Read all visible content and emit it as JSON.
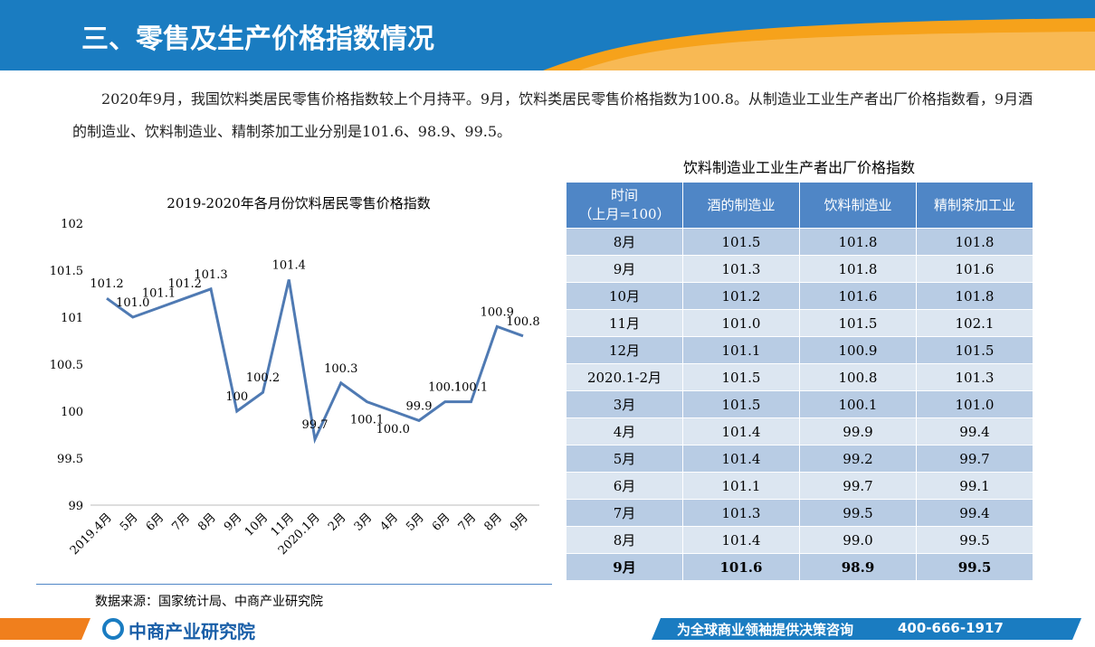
{
  "header": {
    "title": "三、零售及生产价格指数情况"
  },
  "paragraph": "2020年9月，我国饮料类居民零售价格指数较上个月持平。9月，饮料类居民零售价格指数为100.8。从制造业工业生产者出厂价格指数看，9月酒的制造业、饮料制造业、精制茶加工业分别是101.6、98.9、99.5。",
  "chart_data": {
    "type": "line",
    "title": "2019-2020年各月份饮料居民零售价格指数",
    "categories": [
      "2019.4月",
      "5月",
      "6月",
      "7月",
      "8月",
      "9月",
      "10月",
      "11月",
      "2020.1月",
      "2月",
      "3月",
      "4月",
      "5月",
      "6月",
      "7月",
      "8月",
      "9月"
    ],
    "values": [
      101.2,
      101.0,
      101.1,
      101.2,
      101.3,
      100,
      100.2,
      101.4,
      99.7,
      100.3,
      100.1,
      100.0,
      99.9,
      100.1,
      100.1,
      100.9,
      100.8
    ],
    "value_labels": [
      "101.2",
      "101.0",
      "101.1",
      "101.2",
      "101.3",
      "100",
      "100.2",
      "101.4",
      "99.7",
      "100.3",
      "100.1",
      "100.0",
      "99.9",
      "100.1",
      "100.1",
      "100.9",
      "100.8"
    ],
    "color": "#4f7ab3",
    "ylim": [
      99,
      102
    ],
    "yticks": [
      99,
      99.5,
      100,
      100.5,
      101,
      101.5,
      102
    ],
    "grid": false
  },
  "table": {
    "title": "饮料制造业工业生产者出厂价格指数",
    "header": [
      "时间\n（上月=100）",
      "酒的制造业",
      "饮料制造业",
      "精制茶加工业"
    ],
    "rows": [
      [
        "8月",
        "101.5",
        "101.8",
        "101.8"
      ],
      [
        "9月",
        "101.3",
        "101.8",
        "101.6"
      ],
      [
        "10月",
        "101.2",
        "101.6",
        "101.8"
      ],
      [
        "11月",
        "101.0",
        "101.5",
        "102.1"
      ],
      [
        "12月",
        "101.1",
        "100.9",
        "101.5"
      ],
      [
        "2020.1-2月",
        "101.5",
        "100.8",
        "101.3"
      ],
      [
        "3月",
        "101.5",
        "100.1",
        "101.0"
      ],
      [
        "4月",
        "101.4",
        "99.9",
        "99.4"
      ],
      [
        "5月",
        "101.4",
        "99.2",
        "99.7"
      ],
      [
        "6月",
        "101.1",
        "99.7",
        "99.1"
      ],
      [
        "7月",
        "101.3",
        "99.5",
        "99.4"
      ],
      [
        "8月",
        "101.4",
        "99.0",
        "99.5"
      ],
      [
        "9月",
        "101.6",
        "98.9",
        "99.5"
      ]
    ]
  },
  "source": "数据来源：国家统计局、中商产业研究院",
  "footer": {
    "logo": "中商产业研究院",
    "slogan": "为全球商业领袖提供决策咨询",
    "phone": "400-666-1917"
  }
}
